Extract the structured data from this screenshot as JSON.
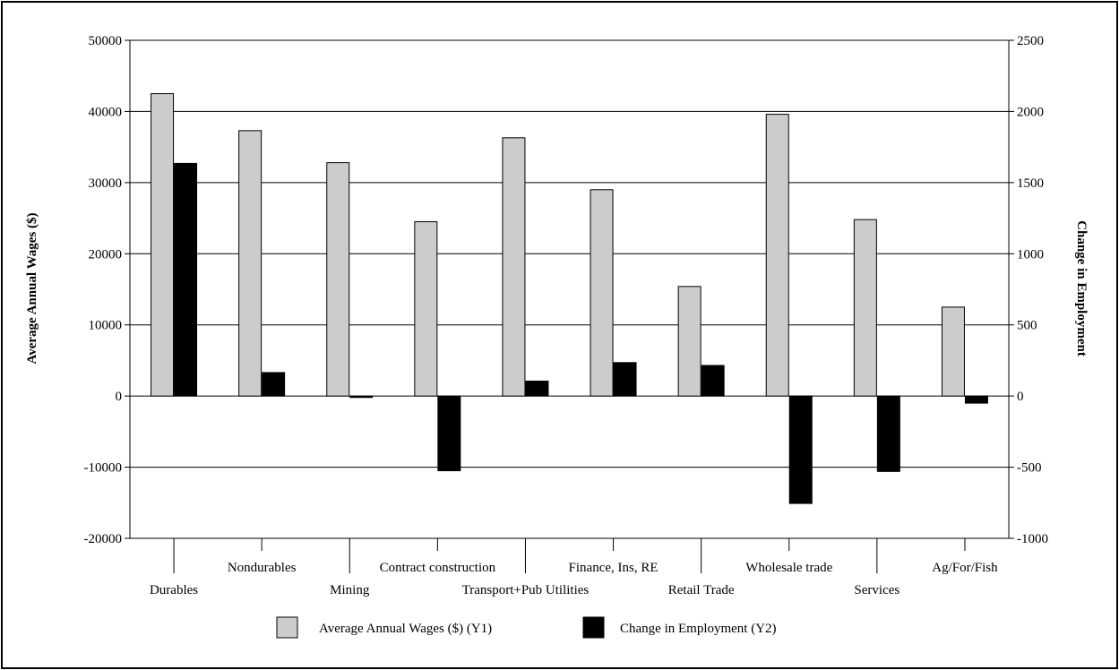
{
  "colors": {
    "wages": "#cccccc",
    "employment": "#000000",
    "grid": "#000000",
    "background": "#ffffff"
  },
  "chart_data": {
    "type": "bar",
    "categories": [
      "Durables",
      "Nondurables",
      "Mining",
      "Contract construction",
      "Transport+Pub Utilities",
      "Finance, Ins, RE",
      "Retail Trade",
      "Wholesale trade",
      "Services",
      "Ag/For/Fish"
    ],
    "series": [
      {
        "name": "Average Annual Wages ($) (Y1)",
        "axis": "y1",
        "color": "#cccccc",
        "values": [
          42500,
          37300,
          32800,
          24500,
          36300,
          29000,
          15400,
          39600,
          24800,
          12500
        ]
      },
      {
        "name": "Change in Employment (Y2)",
        "axis": "y2",
        "color": "#000000",
        "values": [
          1635,
          165,
          -10,
          -525,
          105,
          235,
          215,
          -755,
          -530,
          -50
        ]
      }
    ],
    "ylabel": "Average Annual Wages ($)",
    "y2label": "Change in Employment",
    "ylim": [
      -20000,
      50000
    ],
    "y2lim": [
      -1000,
      2500
    ],
    "yticks": [
      "-20000",
      "-10000",
      "0",
      "10000",
      "20000",
      "30000",
      "40000",
      "50000"
    ],
    "y2ticks": [
      "-1000",
      "-500",
      "0",
      "500",
      "1000",
      "1500",
      "2000",
      "2500"
    ],
    "grid": true,
    "legend_position": "bottom"
  }
}
